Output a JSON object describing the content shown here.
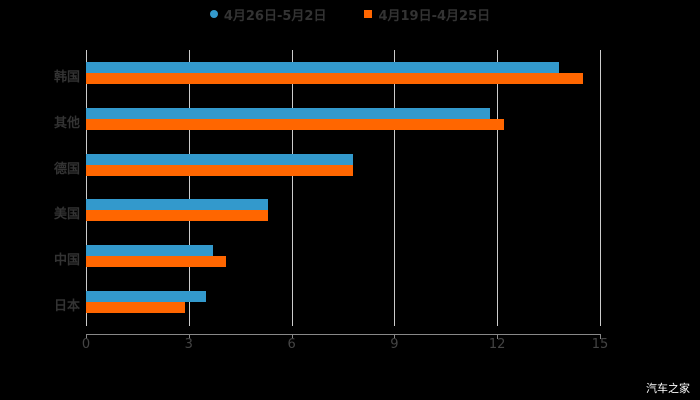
{
  "legend": [
    {
      "label": "4月26日-5月2日",
      "color": "#3399CC",
      "shape": "circle"
    },
    {
      "label": "4月19日-4月25日",
      "color": "#FF6600",
      "shape": "square"
    }
  ],
  "watermark": "汽车之家",
  "chart_data": {
    "type": "bar",
    "orientation": "horizontal",
    "title": "",
    "xlabel": "",
    "ylabel": "",
    "categories": [
      "韩国",
      "其他",
      "德国",
      "美国",
      "中国",
      "日本"
    ],
    "series": [
      {
        "name": "4月26日-5月2日",
        "color": "#3399CC",
        "values": [
          13.8,
          11.8,
          7.8,
          5.3,
          3.7,
          3.5
        ]
      },
      {
        "name": "4月19日-4月25日",
        "color": "#FF6600",
        "values": [
          14.5,
          12.2,
          7.8,
          5.3,
          4.1,
          2.9
        ]
      }
    ],
    "xlim": [
      0,
      15
    ],
    "xticks": [
      "0",
      "3",
      "6",
      "9",
      "12",
      "15"
    ],
    "grid": true,
    "legend_position": "top"
  }
}
